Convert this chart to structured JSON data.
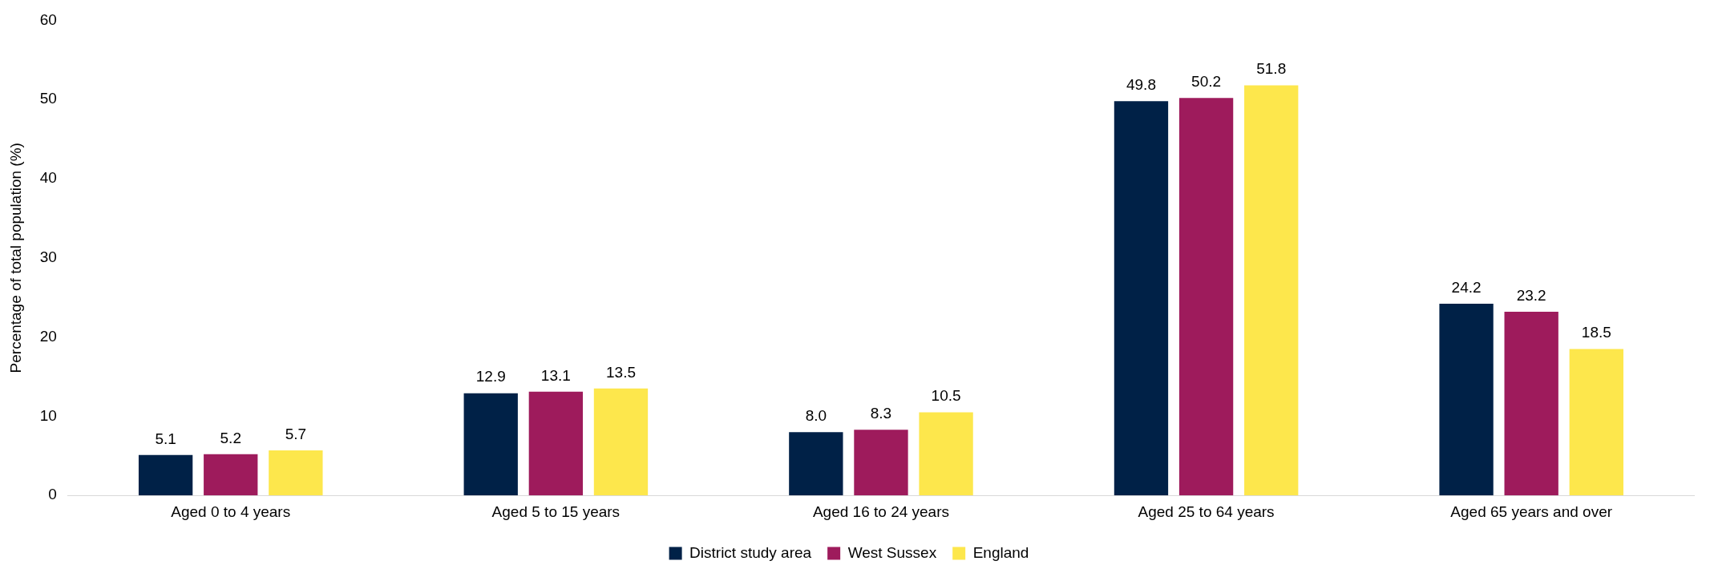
{
  "chart_data": {
    "type": "bar",
    "ylabel": "Percentage of total population (%)",
    "categories": [
      "Aged 0 to 4 years",
      "Aged 5 to 15 years",
      "Aged 16 to 24 years",
      "Aged 25 to 64 years",
      "Aged 65 years and over"
    ],
    "series": [
      {
        "name": "District study area",
        "color": "#002147",
        "values": [
          5.1,
          12.9,
          8.0,
          49.8,
          24.2
        ],
        "value_labels": [
          "5.1",
          "12.9",
          "8.0",
          "49.8",
          "24.2"
        ]
      },
      {
        "name": "West Sussex",
        "color": "#9e1b5c",
        "values": [
          5.2,
          13.1,
          8.3,
          50.2,
          23.2
        ],
        "value_labels": [
          "5.2",
          "13.1",
          "8.3",
          "50.2",
          "23.2"
        ]
      },
      {
        "name": "England",
        "color": "#fde74c",
        "values": [
          5.7,
          13.5,
          10.5,
          51.8,
          18.5
        ],
        "value_labels": [
          "5.7",
          "13.5",
          "10.5",
          "51.8",
          "18.5"
        ]
      }
    ],
    "ylim": [
      0,
      60
    ],
    "yticks": [
      0,
      10,
      20,
      30,
      40,
      50,
      60
    ],
    "grid": false,
    "legend": "bottom"
  }
}
